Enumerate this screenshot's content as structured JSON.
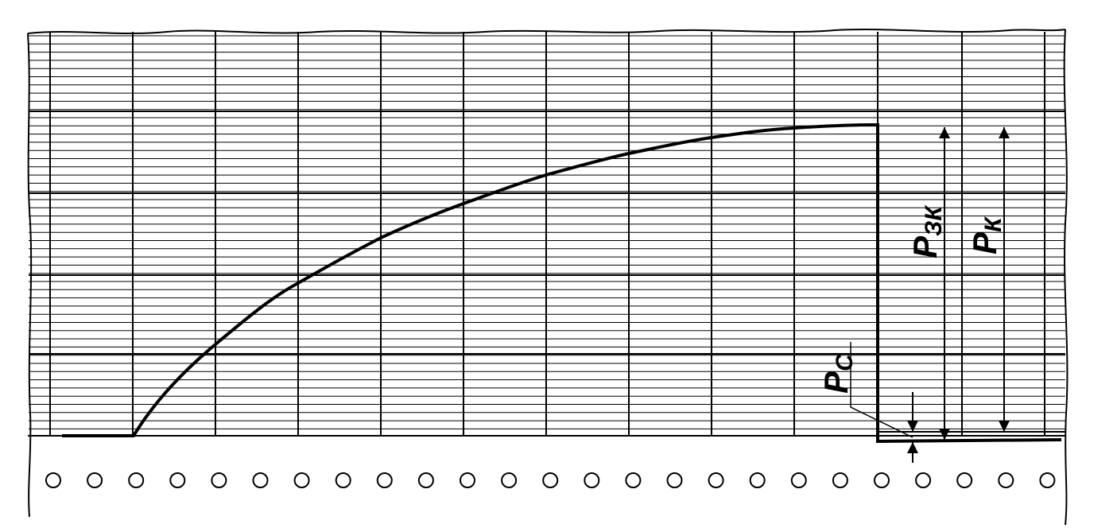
{
  "labels": {
    "p_c": {
      "symbol": "P",
      "subscript": "C"
    },
    "p_zk": {
      "symbol": "P",
      "subscript": "ЗК"
    },
    "p_k": {
      "symbol": "P",
      "subscript": "К"
    }
  }
}
